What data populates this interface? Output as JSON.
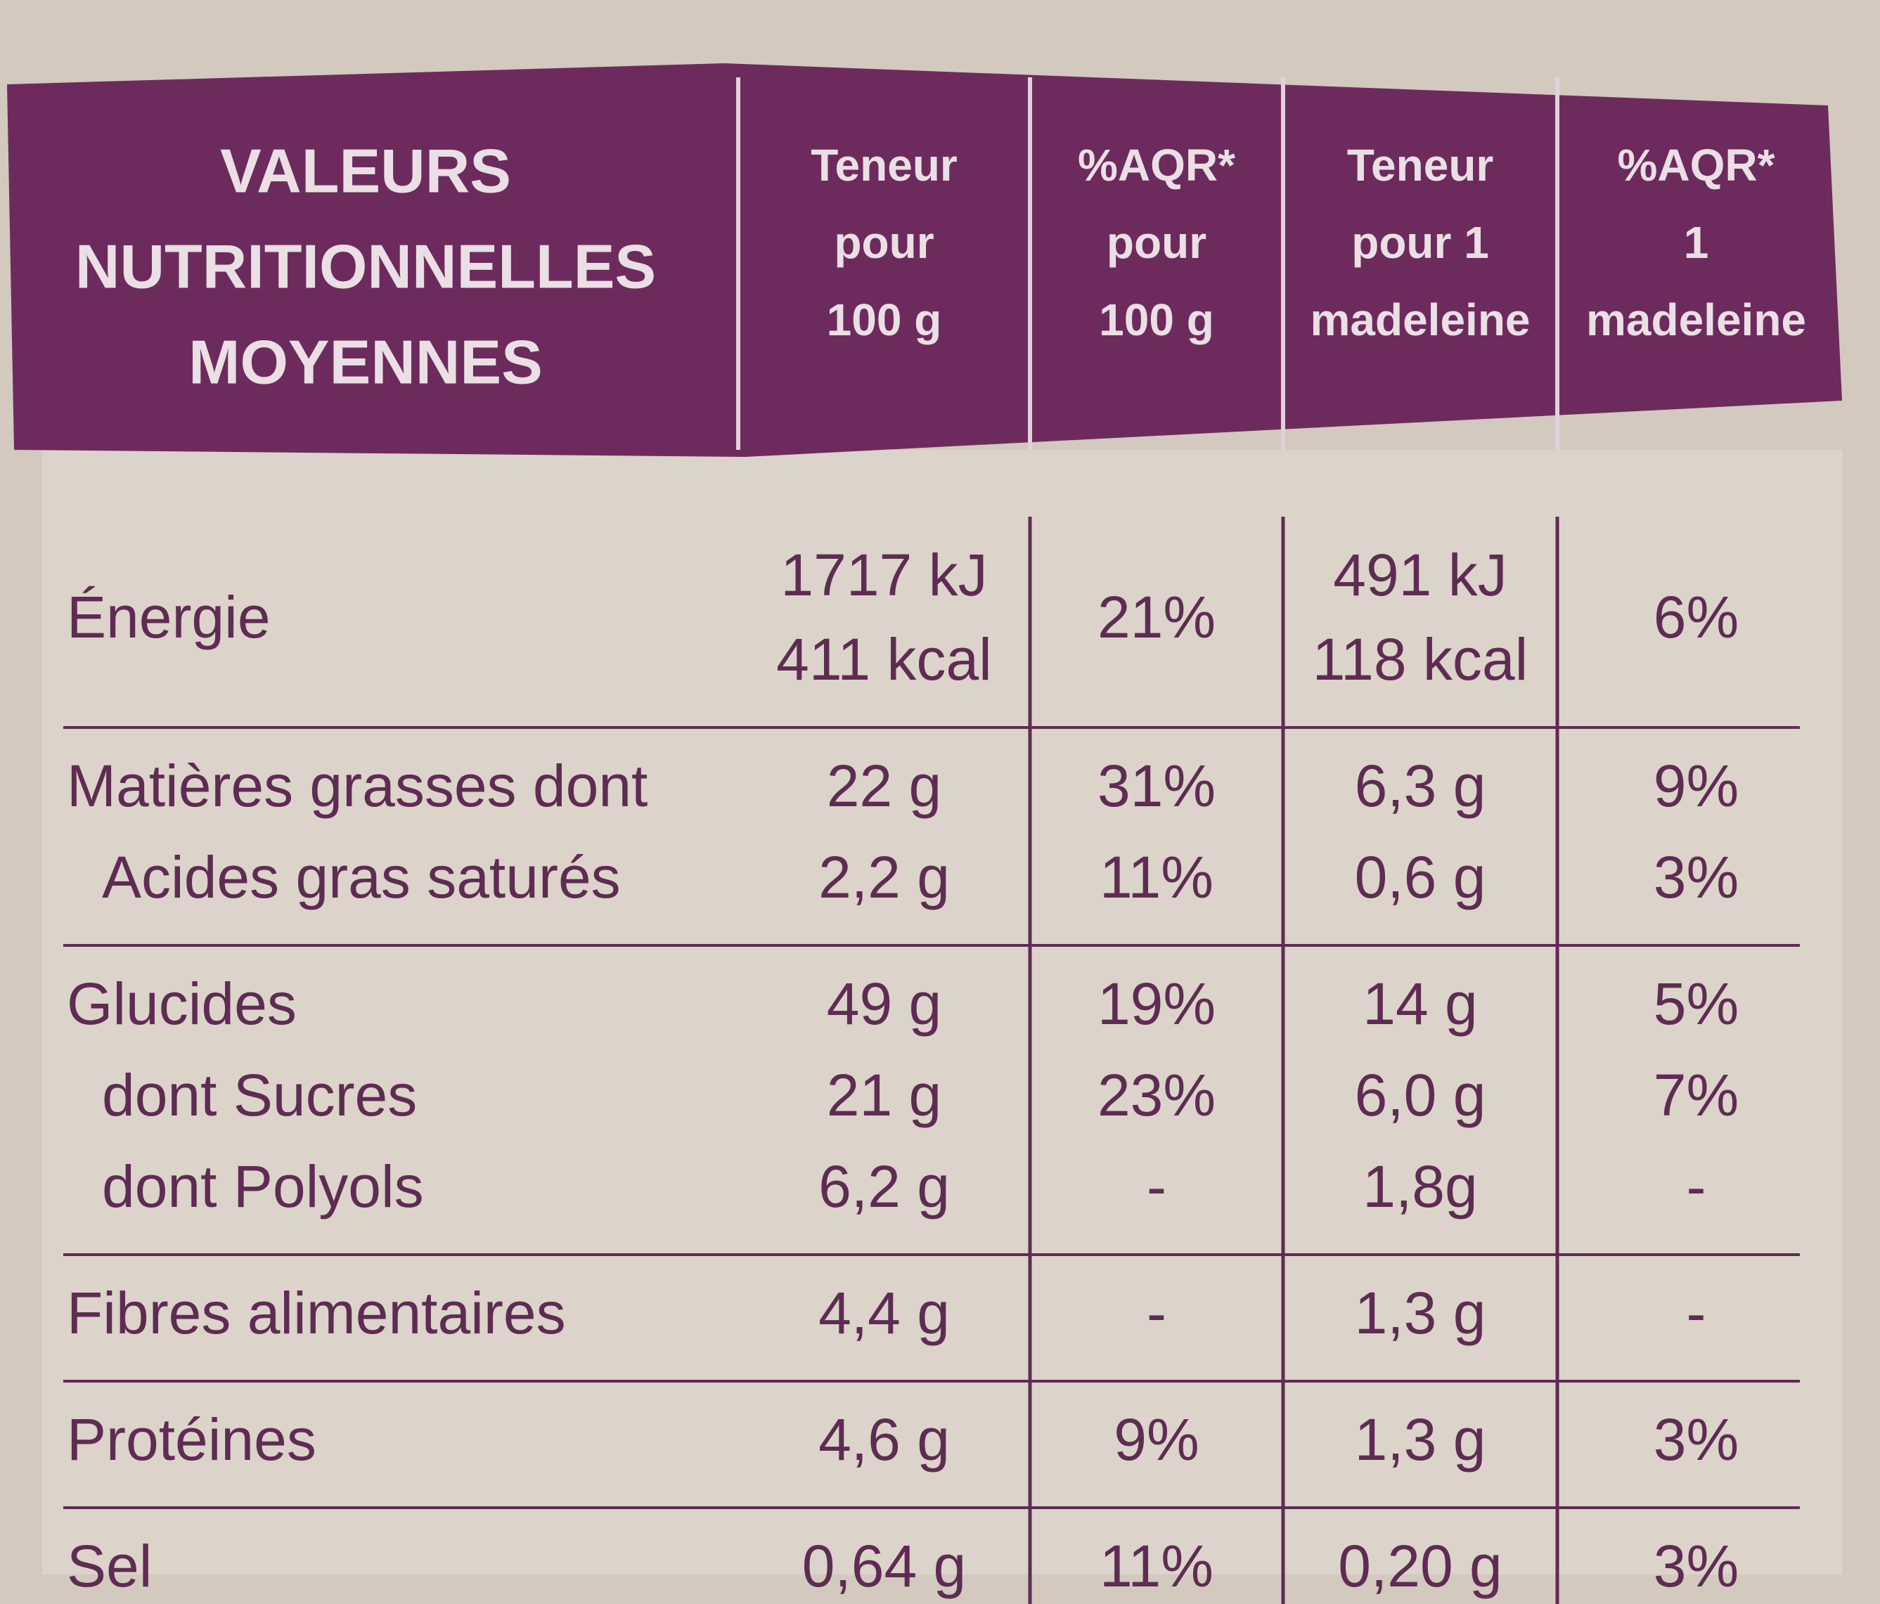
{
  "header": {
    "title": [
      "VALEURS",
      "NUTRITIONNELLES",
      "MOYENNES"
    ],
    "columns": [
      [
        "Teneur",
        "pour",
        "100 g"
      ],
      [
        "%AQR*",
        "pour",
        "100 g"
      ],
      [
        "Teneur",
        "pour 1",
        "madeleine"
      ],
      [
        "%AQR*",
        "1",
        "madeleine"
      ]
    ]
  },
  "table": {
    "groups": [
      [
        {
          "label": "Énergie",
          "values": [
            [
              "1717 kJ",
              "411 kcal"
            ],
            "21%",
            [
              "491 kJ",
              "118 kcal"
            ],
            "6%"
          ]
        }
      ],
      [
        {
          "label": "Matières grasses dont",
          "values": [
            "22 g",
            "31%",
            "6,3 g",
            "9%"
          ]
        },
        {
          "label": "Acides gras saturés",
          "values": [
            "2,2 g",
            "11%",
            "0,6 g",
            "3%"
          ]
        }
      ],
      [
        {
          "label": "Glucides",
          "values": [
            "49 g",
            "19%",
            "14 g",
            "5%"
          ]
        },
        {
          "label": "dont Sucres",
          "values": [
            "21 g",
            "23%",
            "6,0 g",
            "7%"
          ]
        },
        {
          "label": "dont Polyols",
          "values": [
            "6,2 g",
            "-",
            "1,8g",
            "-"
          ]
        }
      ],
      [
        {
          "label": "Fibres alimentaires",
          "values": [
            "4,4 g",
            "-",
            "1,3 g",
            "-"
          ]
        }
      ],
      [
        {
          "label": "Protéines",
          "values": [
            "4,6 g",
            "9%",
            "1,3 g",
            "3%"
          ]
        }
      ],
      [
        {
          "label": "Sel",
          "values": [
            "0,64 g",
            "11%",
            "0,20 g",
            "3%"
          ]
        }
      ]
    ]
  }
}
